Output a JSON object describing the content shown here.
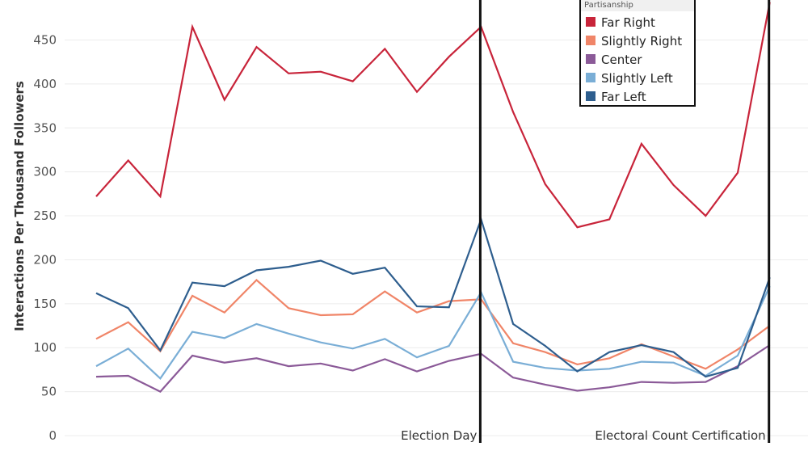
{
  "chart_data": {
    "type": "line",
    "ylabel": "Interactions Per Thousand Followers",
    "ylim": [
      0,
      490
    ],
    "yticks": [
      0,
      50,
      100,
      150,
      200,
      250,
      300,
      350,
      400,
      450
    ],
    "x": [
      0,
      1,
      2,
      3,
      4,
      5,
      6,
      7,
      8,
      9,
      10,
      11,
      12,
      13,
      14,
      15,
      16,
      17,
      18,
      19,
      20,
      21,
      22,
      23,
      24
    ],
    "legend": {
      "title": "Partisanship",
      "placement": "top-right"
    },
    "series": [
      {
        "name": "Far Right",
        "color": "#c8243a",
        "values": [
          272,
          313,
          272,
          465,
          382,
          442,
          412,
          414,
          403,
          440,
          391,
          431,
          465,
          368,
          286,
          237,
          246,
          332,
          285,
          250,
          299,
          493,
          null,
          null,
          null
        ]
      },
      {
        "name": "Slightly Right",
        "color": "#f08568",
        "values": [
          110,
          129,
          96,
          159,
          140,
          177,
          145,
          137,
          138,
          164,
          140,
          153,
          155,
          105,
          95,
          81,
          88,
          104,
          90,
          76,
          98,
          125,
          null,
          null,
          null
        ]
      },
      {
        "name": "Center",
        "color": "#8b5a98",
        "values": [
          67,
          68,
          50,
          91,
          83,
          88,
          79,
          82,
          74,
          87,
          73,
          85,
          93,
          66,
          58,
          51,
          55,
          61,
          60,
          61,
          79,
          103,
          null,
          null,
          null
        ]
      },
      {
        "name": "Slightly Left",
        "color": "#7aaed6",
        "values": [
          79,
          99,
          65,
          118,
          111,
          127,
          116,
          106,
          99,
          110,
          89,
          102,
          163,
          84,
          77,
          74,
          76,
          84,
          83,
          68,
          91,
          170,
          null,
          null,
          null
        ]
      },
      {
        "name": "Far Left",
        "color": "#2e5e8e",
        "values": [
          162,
          145,
          97,
          174,
          170,
          188,
          192,
          199,
          184,
          191,
          147,
          146,
          246,
          127,
          102,
          73,
          95,
          103,
          95,
          67,
          77,
          180,
          null,
          null,
          null
        ]
      }
    ],
    "annotations": [
      {
        "label": "Election Day",
        "x": 12.0
      },
      {
        "label": "Electoral Count Certification",
        "x": 21.0
      }
    ]
  }
}
